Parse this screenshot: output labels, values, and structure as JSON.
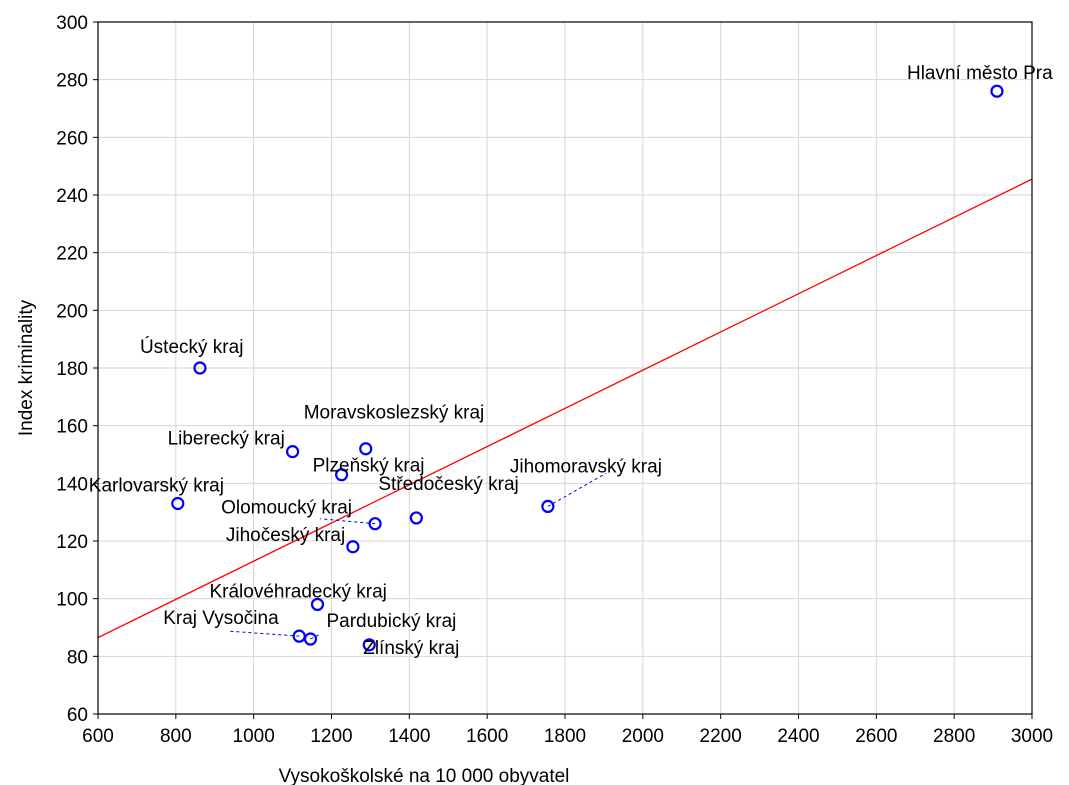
{
  "chart_data": {
    "type": "scatter",
    "title": "",
    "xlabel": "Vysokoškolské na 10 000 obyvatel",
    "ylabel": "Index kriminality",
    "xlim": [
      600,
      3000
    ],
    "ylim": [
      60,
      300
    ],
    "xticks": [
      600,
      800,
      1000,
      1200,
      1400,
      1600,
      1800,
      2000,
      2200,
      2400,
      2600,
      2800,
      3000
    ],
    "yticks": [
      60,
      80,
      100,
      120,
      140,
      160,
      180,
      200,
      220,
      240,
      260,
      280,
      300
    ],
    "grid": true,
    "legend": "none",
    "colors": {
      "points": "#0000ff",
      "fit_line": "#ff0000",
      "grid": "#d6d6d6"
    },
    "points": [
      {
        "label": "Hlavní město Pra",
        "x": 2910,
        "y": 276
      },
      {
        "label": "Ústecký kraj",
        "x": 862,
        "y": 180
      },
      {
        "label": "Moravskoslezský kraj",
        "x": 1288,
        "y": 152
      },
      {
        "label": "Liberecký kraj",
        "x": 1100,
        "y": 151
      },
      {
        "label": "Plzeňský kraj",
        "x": 1226,
        "y": 143
      },
      {
        "label": "Jihomoravský kraj",
        "x": 1756,
        "y": 132
      },
      {
        "label": "Karlovarský kraj",
        "x": 805,
        "y": 133
      },
      {
        "label": "Středočeský kraj",
        "x": 1418,
        "y": 128
      },
      {
        "label": "Olomoucký kraj",
        "x": 1312,
        "y": 126
      },
      {
        "label": "Jihočeský kraj",
        "x": 1255,
        "y": 118
      },
      {
        "label": "Královéhradecký kraj",
        "x": 1164,
        "y": 98
      },
      {
        "label": "Kraj Vysočina",
        "x": 1117,
        "y": 87
      },
      {
        "label": "Pardubický kraj",
        "x": 1146,
        "y": 86
      },
      {
        "label": "Zlínský kraj",
        "x": 1297,
        "y": 84
      }
    ],
    "fit_line": {
      "x": [
        600,
        3000
      ],
      "y": [
        86.5,
        245.5
      ]
    }
  }
}
